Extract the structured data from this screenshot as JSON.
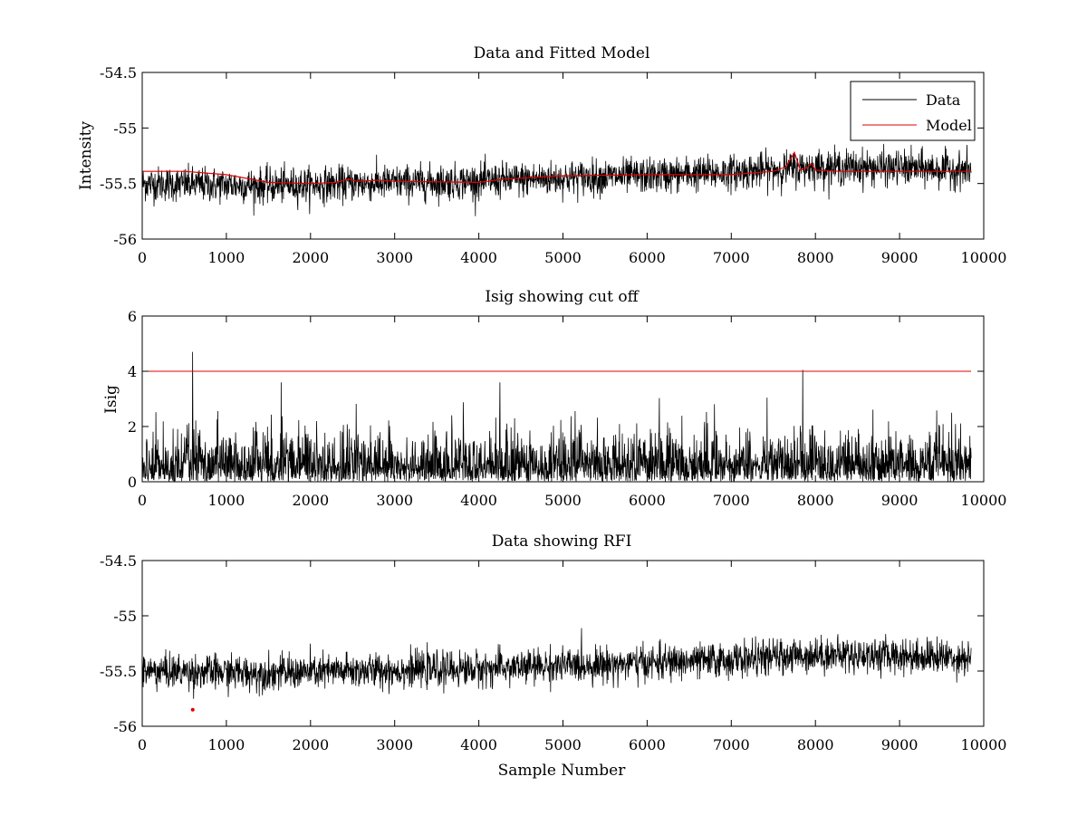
{
  "chart_data": [
    {
      "type": "line",
      "title": "Data and Fitted Model",
      "xlabel": "",
      "ylabel": "Intensity",
      "xlim": [
        0,
        10000
      ],
      "ylim": [
        -56,
        -54.5
      ],
      "xticks": [
        0,
        1000,
        2000,
        3000,
        4000,
        5000,
        6000,
        7000,
        8000,
        9000,
        10000
      ],
      "yticks": [
        -56,
        -55.5,
        -55,
        -54.5
      ],
      "legend_position": "top-right",
      "series": [
        {
          "name": "Data",
          "color": "#000000",
          "kind": "noisy",
          "baseline": [
            [
              0,
              -55.5
            ],
            [
              1500,
              -55.52
            ],
            [
              2500,
              -55.5
            ],
            [
              4000,
              -55.48
            ],
            [
              5000,
              -55.45
            ],
            [
              6000,
              -55.43
            ],
            [
              7000,
              -55.4
            ],
            [
              8000,
              -55.35
            ],
            [
              9000,
              -55.36
            ],
            [
              9850,
              -55.38
            ]
          ],
          "noise_amplitude": 0.13,
          "x_max": 9850
        },
        {
          "name": "Model",
          "color": "#e00000",
          "kind": "line",
          "points": [
            [
              0,
              -55.39
            ],
            [
              500,
              -55.39
            ],
            [
              1000,
              -55.42
            ],
            [
              1500,
              -55.49
            ],
            [
              2000,
              -55.5
            ],
            [
              2300,
              -55.49
            ],
            [
              2450,
              -55.46
            ],
            [
              2550,
              -55.48
            ],
            [
              2800,
              -55.47
            ],
            [
              3000,
              -55.48
            ],
            [
              4000,
              -55.49
            ],
            [
              4300,
              -55.46
            ],
            [
              5000,
              -55.43
            ],
            [
              6000,
              -55.42
            ],
            [
              7000,
              -55.42
            ],
            [
              7500,
              -55.39
            ],
            [
              7650,
              -55.35
            ],
            [
              7750,
              -55.22
            ],
            [
              7820,
              -55.38
            ],
            [
              7900,
              -55.36
            ],
            [
              7950,
              -55.32
            ],
            [
              8000,
              -55.38
            ],
            [
              8300,
              -55.39
            ],
            [
              9000,
              -55.39
            ],
            [
              9850,
              -55.39
            ]
          ]
        }
      ]
    },
    {
      "type": "line",
      "title": "Isig showing cut off",
      "xlabel": "",
      "ylabel": "Isig",
      "xlim": [
        0,
        10000
      ],
      "ylim": [
        0,
        6
      ],
      "xticks": [
        0,
        1000,
        2000,
        3000,
        4000,
        5000,
        6000,
        7000,
        8000,
        9000,
        10000
      ],
      "yticks": [
        0,
        2,
        4,
        6
      ],
      "series": [
        {
          "name": "Isig",
          "color": "#000000",
          "kind": "abs-noise",
          "noise_amplitude": 1.0,
          "x_max": 9850,
          "spikes": [
            [
              600,
              4.7
            ],
            [
              7850,
              4.05
            ],
            [
              4250,
              3.6
            ],
            [
              1650,
              3.6
            ]
          ]
        },
        {
          "name": "cut off",
          "color": "#e00000",
          "kind": "hline",
          "value": 4,
          "x_max": 9850
        }
      ]
    },
    {
      "type": "line",
      "title": "Data showing RFI",
      "xlabel": "Sample Number",
      "ylabel": "",
      "xlim": [
        0,
        10000
      ],
      "ylim": [
        -56,
        -54.5
      ],
      "xticks": [
        0,
        1000,
        2000,
        3000,
        4000,
        5000,
        6000,
        7000,
        8000,
        9000,
        10000
      ],
      "yticks": [
        -56,
        -55.5,
        -55,
        -54.5
      ],
      "series": [
        {
          "name": "Data",
          "color": "#000000",
          "kind": "noisy",
          "baseline": [
            [
              0,
              -55.5
            ],
            [
              1500,
              -55.52
            ],
            [
              2500,
              -55.5
            ],
            [
              4000,
              -55.48
            ],
            [
              5000,
              -55.45
            ],
            [
              6000,
              -55.43
            ],
            [
              7000,
              -55.4
            ],
            [
              8000,
              -55.35
            ],
            [
              9000,
              -55.36
            ],
            [
              9850,
              -55.38
            ]
          ],
          "noise_amplitude": 0.13,
          "x_max": 9850
        },
        {
          "name": "RFI",
          "color": "#e00000",
          "kind": "points",
          "points": [
            [
              600,
              -55.85
            ]
          ]
        }
      ]
    }
  ]
}
